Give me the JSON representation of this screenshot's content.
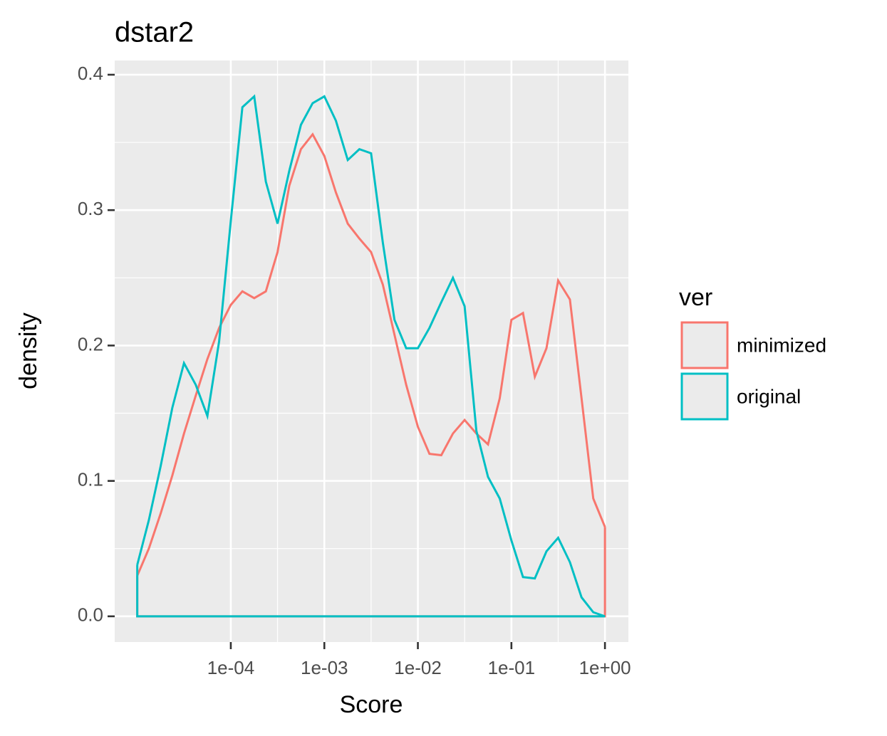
{
  "chart_data": {
    "type": "line",
    "title": "dstar2",
    "xlabel": "Score",
    "ylabel": "density",
    "xscale": "log",
    "x": [
      1e-05,
      1.33e-05,
      1.78e-05,
      2.37e-05,
      3.16e-05,
      4.22e-05,
      5.62e-05,
      7.5e-05,
      0.0001,
      0.000133,
      0.000178,
      0.000237,
      0.000316,
      0.000422,
      0.000562,
      0.00075,
      0.001,
      0.00133,
      0.00178,
      0.00237,
      0.00316,
      0.00422,
      0.00562,
      0.0075,
      0.01,
      0.0133,
      0.0178,
      0.0237,
      0.0316,
      0.0422,
      0.0562,
      0.075,
      0.1,
      0.133,
      0.178,
      0.237,
      0.316,
      0.422,
      0.562,
      0.75,
      1
    ],
    "series": [
      {
        "name": "minimized",
        "color": "#F8766D",
        "values": [
          0.03,
          0.05,
          0.076,
          0.104,
          0.135,
          0.163,
          0.19,
          0.213,
          0.23,
          0.24,
          0.235,
          0.24,
          0.269,
          0.318,
          0.345,
          0.356,
          0.34,
          0.313,
          0.29,
          0.279,
          0.269,
          0.245,
          0.208,
          0.171,
          0.14,
          0.12,
          0.119,
          0.135,
          0.145,
          0.135,
          0.127,
          0.161,
          0.219,
          0.224,
          0.177,
          0.198,
          0.248,
          0.234,
          0.161,
          0.087,
          0.066
        ]
      },
      {
        "name": "original",
        "color": "#00BFC4",
        "values": [
          0.038,
          0.071,
          0.111,
          0.154,
          0.187,
          0.171,
          0.148,
          0.203,
          0.292,
          0.376,
          0.384,
          0.321,
          0.29,
          0.329,
          0.363,
          0.379,
          0.384,
          0.366,
          0.337,
          0.345,
          0.342,
          0.276,
          0.219,
          0.198,
          0.198,
          0.213,
          0.232,
          0.25,
          0.229,
          0.137,
          0.103,
          0.087,
          0.056,
          0.029,
          0.028,
          0.048,
          0.058,
          0.04,
          0.014,
          0.003,
          0.0
        ]
      }
    ],
    "xlim": [
      5.74e-06,
      1.78
    ],
    "xticks": [
      {
        "value": 0.0001,
        "label": "1e-04"
      },
      {
        "value": 0.001,
        "label": "1e-03"
      },
      {
        "value": 0.01,
        "label": "1e-02"
      },
      {
        "value": 0.1,
        "label": "1e-01"
      },
      {
        "value": 1,
        "label": "1e+00"
      }
    ],
    "xminor": [
      0.000316,
      0.00316,
      0.0316,
      0.316
    ],
    "ylim": [
      -0.019,
      0.4105
    ],
    "yticks": [
      {
        "value": 0,
        "label": "0.0"
      },
      0.1,
      0.2,
      0.3,
      0.4
    ],
    "yminor": [
      0.05,
      0.15,
      0.25,
      0.35
    ],
    "legend_title": "ver",
    "legend": "right",
    "grid": true
  }
}
